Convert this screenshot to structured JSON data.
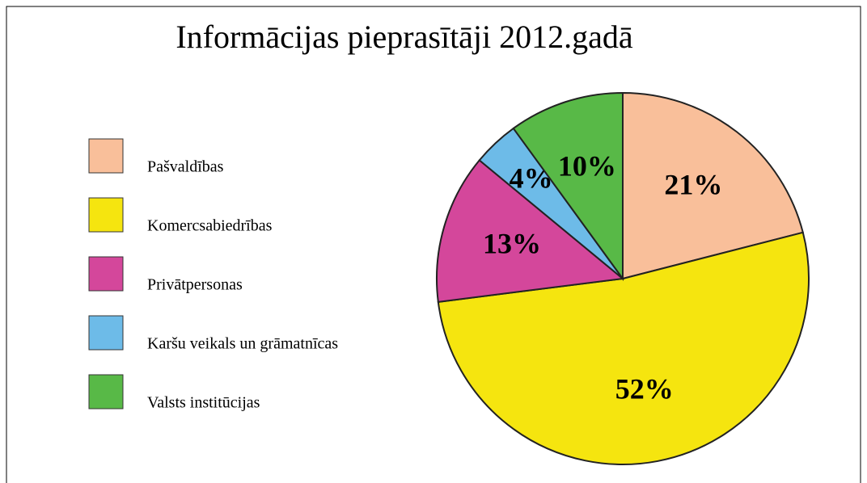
{
  "chart_data": {
    "type": "pie",
    "title": "Informācijas pieprasītāji 2012.gadā",
    "categories": [
      "Pašvaldības",
      "Komercsabiedrības",
      "Privātpersonas",
      "Karšu veikals un grāmatnīcas",
      "Valsts institūcijas"
    ],
    "values": [
      21,
      52,
      13,
      4,
      10
    ],
    "value_labels": [
      "21%",
      "52%",
      "13%",
      "4%",
      "10%"
    ],
    "colors": [
      "#f9bf9a",
      "#f5e50f",
      "#d4479b",
      "#6dbbe8",
      "#58b947"
    ],
    "legend": "left"
  }
}
